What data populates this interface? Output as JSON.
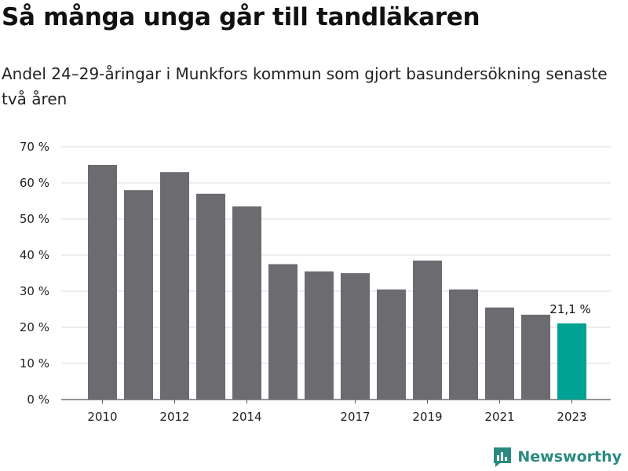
{
  "header": {
    "title": "Så många unga går till tandläkaren",
    "subtitle": "Andel 24–29-åringar i Munkfors kommun som gjort basundersökning senaste två åren"
  },
  "brand": {
    "name": "Newsworthy"
  },
  "colors": {
    "bar": "#6c6b70",
    "highlight": "#00a393",
    "grid": "#dcdcdc",
    "axis": "#555555"
  },
  "chart_data": {
    "type": "bar",
    "title": "Så många unga går till tandläkaren",
    "subtitle": "Andel 24–29-åringar i Munkfors kommun som gjort basundersökning senaste två åren",
    "categories": [
      "2010",
      "2011",
      "2012",
      "2013",
      "2014",
      "2015",
      "2016",
      "2017",
      "2018",
      "2019",
      "2020",
      "2021",
      "2022",
      "2023"
    ],
    "x_tick_labels": [
      "2010",
      "",
      "2012",
      "",
      "2014",
      "",
      "",
      "2017",
      "",
      "2019",
      "",
      "2021",
      "",
      "2023"
    ],
    "values": [
      65,
      58,
      63,
      57,
      53.5,
      37.5,
      35.5,
      35,
      30.5,
      38.5,
      30.5,
      25.5,
      23.5,
      21.1
    ],
    "highlight_index": 13,
    "highlight_label": "21,1 %",
    "ylim": [
      0,
      70
    ],
    "yticks": [
      0,
      10,
      20,
      30,
      40,
      50,
      60,
      70
    ],
    "ytick_labels": [
      "0 %",
      "10 %",
      "20 %",
      "30 %",
      "40 %",
      "50 %",
      "60 %",
      "70 %"
    ],
    "grid": true,
    "legend": "none"
  }
}
